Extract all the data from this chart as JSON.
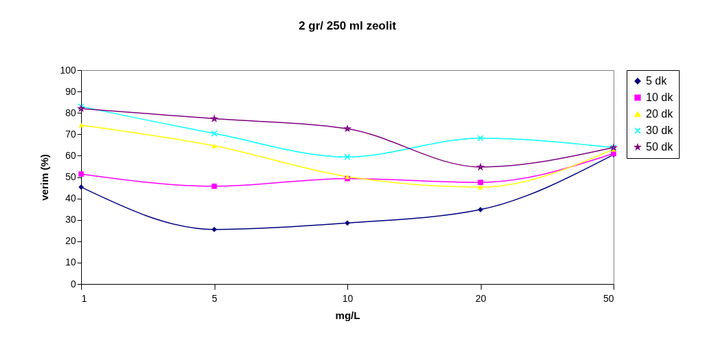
{
  "chart_data": {
    "type": "line",
    "title": "2 gr/ 250 ml  zeolit",
    "xlabel": "mg/L",
    "ylabel": "verim (%)",
    "categories": [
      "1",
      "5",
      "10",
      "20",
      "50"
    ],
    "series": [
      {
        "name": "5 dk",
        "color": "#000080",
        "marker": "diamond",
        "values": [
          45.3,
          25.5,
          28.5,
          34.8,
          60.5
        ]
      },
      {
        "name": "10 dk",
        "color": "#ff00ff",
        "marker": "square",
        "values": [
          51.4,
          45.7,
          49.3,
          47.5,
          61
        ]
      },
      {
        "name": "20 dk",
        "color": "#ffff00",
        "marker": "triangle",
        "values": [
          74.3,
          64.6,
          50.2,
          45.3,
          63
        ]
      },
      {
        "name": "30 dk",
        "color": "#00ffff",
        "marker": "cross",
        "values": [
          83,
          70.4,
          59.4,
          68.2,
          63.8
        ]
      },
      {
        "name": "50 dk",
        "color": "#800080",
        "marker": "star",
        "values": [
          82,
          77.3,
          72.6,
          54.7,
          63.8
        ]
      }
    ],
    "ylim": [
      0,
      100
    ],
    "yticks": [
      0,
      10,
      20,
      30,
      40,
      50,
      60,
      70,
      80,
      90,
      100
    ],
    "grid": false,
    "legend": "right"
  }
}
